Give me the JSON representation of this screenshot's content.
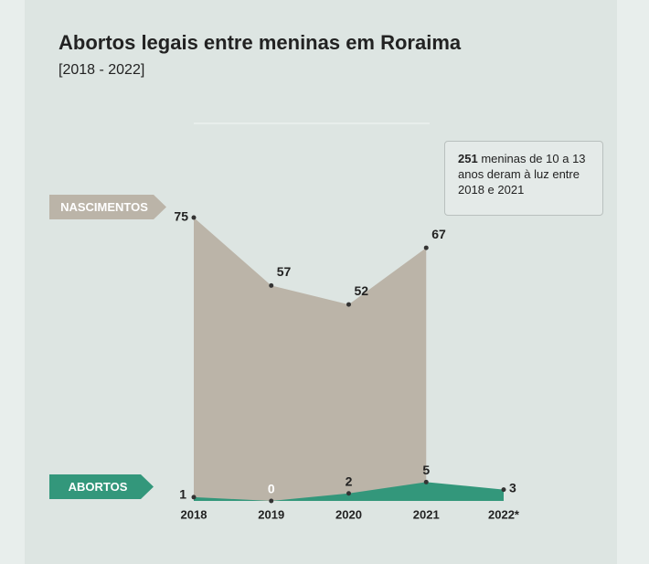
{
  "chart_data": {
    "type": "area",
    "title": "Abortos legais entre meninas em Roraima",
    "subtitle": "[2018 - 2022]",
    "categories": [
      "2018",
      "2019",
      "2020",
      "2021",
      "2022*"
    ],
    "series": [
      {
        "name": "NASCIMENTOS",
        "color": "#bbb4a8",
        "values": [
          75,
          57,
          52,
          67,
          null
        ]
      },
      {
        "name": "ABORTOS",
        "color": "#33977b",
        "values": [
          1,
          0,
          2,
          5,
          3
        ]
      }
    ],
    "ylim": [
      0,
      75
    ],
    "annotation": {
      "number": "251",
      "text": "meninas de 10 a 13 anos deram à luz entre 2018 e 2021"
    }
  }
}
